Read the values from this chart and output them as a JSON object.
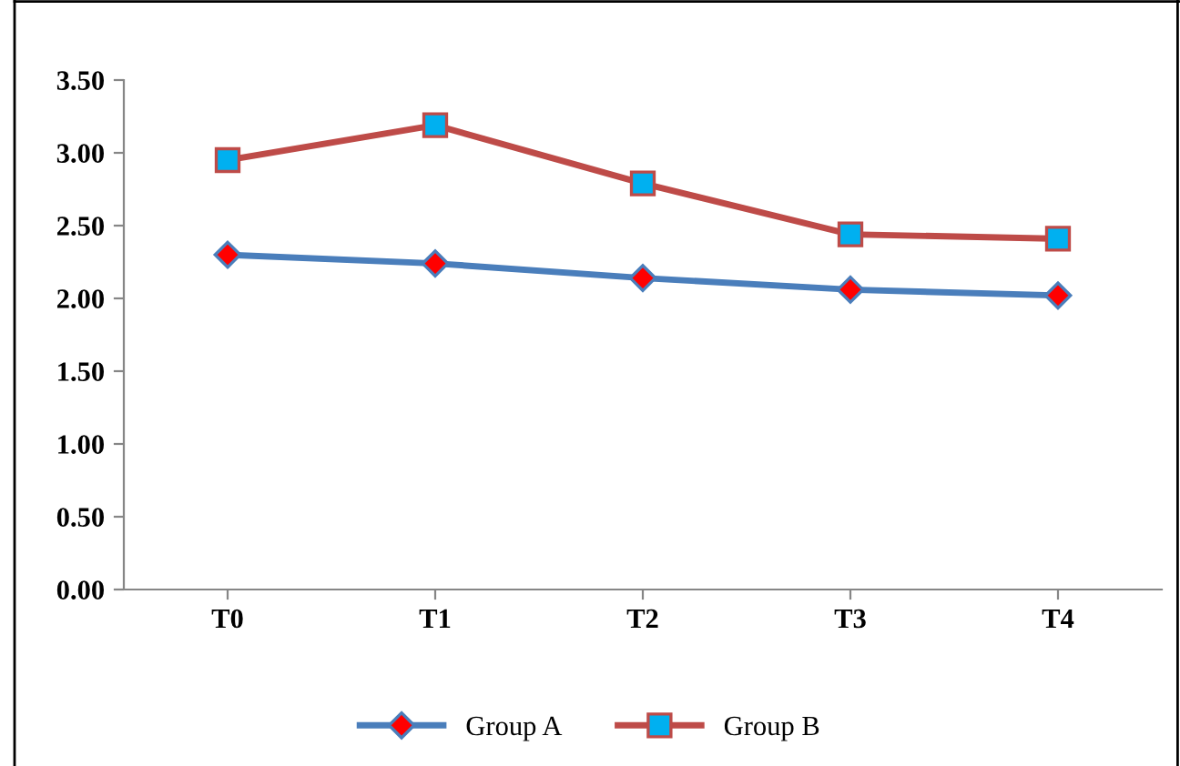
{
  "chart_data": {
    "type": "line",
    "categories": [
      "T0",
      "T1",
      "T2",
      "T3",
      "T4"
    ],
    "series": [
      {
        "name": "Group A",
        "color": "#4a7ebb",
        "marker": "diamond",
        "values": [
          2.3,
          2.24,
          2.14,
          2.06,
          2.02
        ]
      },
      {
        "name": "Group B",
        "color": "#be4b48",
        "marker": "square",
        "values": [
          2.95,
          3.19,
          2.79,
          2.44,
          2.41
        ]
      }
    ],
    "ylim": [
      0,
      3.5
    ],
    "yticks": [
      {
        "value": 0,
        "label": "0.00"
      },
      {
        "value": 0.5,
        "label": "0.50"
      },
      {
        "value": 1,
        "label": "1.00"
      },
      {
        "value": 1.5,
        "label": "1.50"
      },
      {
        "value": 2,
        "label": "2.00"
      },
      {
        "value": 2.5,
        "label": "2.50"
      },
      {
        "value": 3,
        "label": "3.00"
      },
      {
        "value": 3.5,
        "label": "3.50"
      }
    ],
    "grid": false,
    "legend": "bottom",
    "line_style": "solid"
  }
}
